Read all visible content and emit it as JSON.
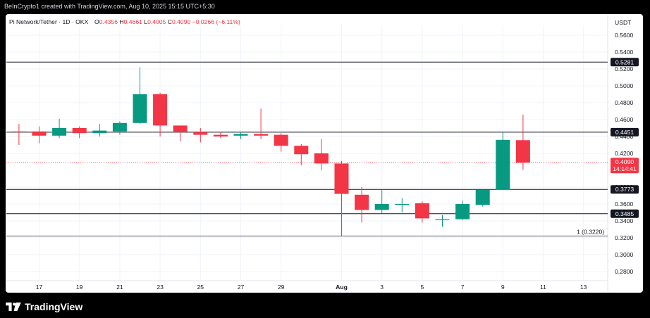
{
  "header": {
    "text": "BeInCrypto1 created with TradingView.com, Aug 10, 2025 15:15 UTC+5:30"
  },
  "legend": {
    "symbol": "Pi Network/Tether · 1D · OKX",
    "open_label": "O",
    "open_value": "0.4356",
    "high_label": "H",
    "high_value": "0.4661",
    "low_label": "L",
    "low_value": "0.4005",
    "close_label": "C",
    "close_value": "0.4090",
    "change": "−0.0266 (−6.11%)"
  },
  "footer": {
    "brand": "TradingView"
  },
  "colors": {
    "up": "#089981",
    "down": "#f23645",
    "grid": "#f0f3fa",
    "level": "#131722",
    "tag_bg": "#131722"
  },
  "chart_data": {
    "type": "candlestick",
    "y_axis_title": "USDT",
    "ylim": [
      0.27,
      0.575
    ],
    "y_ticks": [
      "0.5600",
      "0.5400",
      "0.5200",
      "0.5000",
      "0.4800",
      "0.4600",
      "0.4400",
      "0.4200",
      "0.3800",
      "0.3600",
      "0.3400",
      "0.3200",
      "0.3000",
      "0.2800"
    ],
    "x_ticks": [
      {
        "day": 17,
        "label": "17"
      },
      {
        "day": 19,
        "label": "19"
      },
      {
        "day": 21,
        "label": "21"
      },
      {
        "day": 23,
        "label": "23"
      },
      {
        "day": 25,
        "label": "25"
      },
      {
        "day": 27,
        "label": "27"
      },
      {
        "day": 29,
        "label": "29"
      },
      {
        "day": 32,
        "label": "Aug"
      },
      {
        "day": 34,
        "label": "3"
      },
      {
        "day": 36,
        "label": "5"
      },
      {
        "day": 38,
        "label": "7"
      },
      {
        "day": 40,
        "label": "9"
      },
      {
        "day": 42,
        "label": "11"
      },
      {
        "day": 44,
        "label": "13"
      }
    ],
    "candles": [
      {
        "day": 16,
        "o": 0.446,
        "h": 0.455,
        "l": 0.43,
        "c": 0.445
      },
      {
        "day": 17,
        "o": 0.446,
        "h": 0.452,
        "l": 0.432,
        "c": 0.441
      },
      {
        "day": 18,
        "o": 0.441,
        "h": 0.461,
        "l": 0.438,
        "c": 0.45
      },
      {
        "day": 19,
        "o": 0.45,
        "h": 0.452,
        "l": 0.438,
        "c": 0.444
      },
      {
        "day": 20,
        "o": 0.444,
        "h": 0.455,
        "l": 0.44,
        "c": 0.447
      },
      {
        "day": 21,
        "o": 0.446,
        "h": 0.458,
        "l": 0.442,
        "c": 0.456
      },
      {
        "day": 22,
        "o": 0.456,
        "h": 0.522,
        "l": 0.455,
        "c": 0.49
      },
      {
        "day": 23,
        "o": 0.49,
        "h": 0.492,
        "l": 0.44,
        "c": 0.453
      },
      {
        "day": 24,
        "o": 0.453,
        "h": 0.453,
        "l": 0.434,
        "c": 0.445
      },
      {
        "day": 25,
        "o": 0.445,
        "h": 0.45,
        "l": 0.433,
        "c": 0.442
      },
      {
        "day": 26,
        "o": 0.442,
        "h": 0.445,
        "l": 0.438,
        "c": 0.44
      },
      {
        "day": 27,
        "o": 0.441,
        "h": 0.445,
        "l": 0.437,
        "c": 0.443
      },
      {
        "day": 28,
        "o": 0.443,
        "h": 0.473,
        "l": 0.437,
        "c": 0.441
      },
      {
        "day": 29,
        "o": 0.442,
        "h": 0.444,
        "l": 0.422,
        "c": 0.429
      },
      {
        "day": 30,
        "o": 0.429,
        "h": 0.431,
        "l": 0.406,
        "c": 0.419
      },
      {
        "day": 31,
        "o": 0.42,
        "h": 0.437,
        "l": 0.4,
        "c": 0.408
      },
      {
        "day": 32,
        "o": 0.408,
        "h": 0.411,
        "l": 0.322,
        "c": 0.372
      },
      {
        "day": 33,
        "o": 0.371,
        "h": 0.38,
        "l": 0.338,
        "c": 0.353
      },
      {
        "day": 34,
        "o": 0.353,
        "h": 0.377,
        "l": 0.349,
        "c": 0.36
      },
      {
        "day": 35,
        "o": 0.36,
        "h": 0.367,
        "l": 0.35,
        "c": 0.36
      },
      {
        "day": 36,
        "o": 0.361,
        "h": 0.363,
        "l": 0.338,
        "c": 0.343
      },
      {
        "day": 37,
        "o": 0.341,
        "h": 0.347,
        "l": 0.333,
        "c": 0.342
      },
      {
        "day": 38,
        "o": 0.342,
        "h": 0.364,
        "l": 0.341,
        "c": 0.36
      },
      {
        "day": 39,
        "o": 0.359,
        "h": 0.378,
        "l": 0.357,
        "c": 0.377
      },
      {
        "day": 40,
        "o": 0.377,
        "h": 0.445,
        "l": 0.377,
        "c": 0.436
      },
      {
        "day": 41,
        "o": 0.4356,
        "h": 0.4661,
        "l": 0.4005,
        "c": 0.409
      }
    ],
    "levels": [
      {
        "price": 0.5281,
        "label": "0.5281"
      },
      {
        "price": 0.4451,
        "label": "0.4451"
      },
      {
        "price": 0.3773,
        "label": "0.3773"
      },
      {
        "price": 0.3485,
        "label": "0.3485"
      }
    ],
    "fib_line": {
      "price": 0.322,
      "label": "1 (0.3220)"
    },
    "current_price": {
      "price": 0.409,
      "label": "0.4090",
      "countdown": "14:14:41"
    }
  }
}
